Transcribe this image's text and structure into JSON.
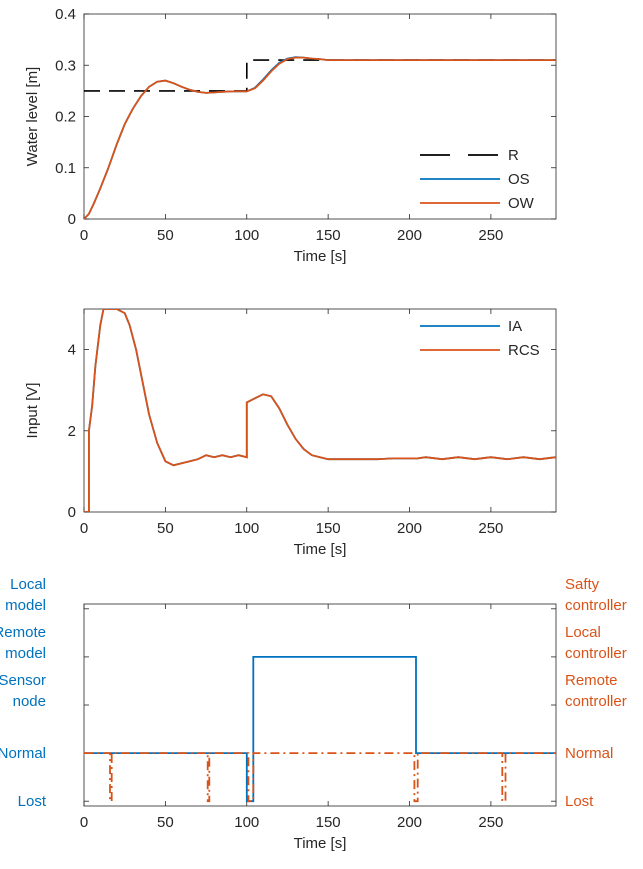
{
  "colors": {
    "blue": "#0072BD",
    "orange": "#D95319",
    "black": "#000000",
    "axis": "#262626"
  },
  "chart_data": [
    {
      "type": "line",
      "xlabel": "Time [s]",
      "ylabel": "Water level [m]",
      "xlim": [
        0,
        290
      ],
      "ylim": [
        0,
        0.4
      ],
      "xticks": [
        0,
        50,
        100,
        150,
        200,
        250
      ],
      "yticks": [
        0,
        0.1,
        0.2,
        0.3,
        0.4
      ],
      "ytick_labels": [
        "0",
        "0.1",
        "0.2",
        "0.3",
        "0.4"
      ],
      "legend_position": "bottom-right",
      "series": [
        {
          "name": "R",
          "style": "dashed",
          "color": "#000000",
          "x": [
            0,
            100,
            100,
            290
          ],
          "y": [
            0.25,
            0.25,
            0.31,
            0.31
          ]
        },
        {
          "name": "OS",
          "style": "solid",
          "color": "#0072BD",
          "x": [
            0,
            3,
            6,
            10,
            15,
            20,
            25,
            30,
            35,
            40,
            45,
            50,
            55,
            60,
            65,
            70,
            75,
            80,
            85,
            90,
            95,
            100,
            105,
            110,
            115,
            120,
            125,
            130,
            135,
            140,
            145,
            150,
            160,
            170,
            180,
            190,
            200,
            210,
            220,
            230,
            240,
            250,
            260,
            270,
            280,
            290
          ],
          "y": [
            0,
            0.01,
            0.03,
            0.06,
            0.1,
            0.145,
            0.185,
            0.215,
            0.24,
            0.258,
            0.268,
            0.27,
            0.265,
            0.258,
            0.252,
            0.248,
            0.246,
            0.247,
            0.248,
            0.249,
            0.249,
            0.249,
            0.256,
            0.272,
            0.29,
            0.305,
            0.313,
            0.316,
            0.315,
            0.313,
            0.312,
            0.31,
            0.31,
            0.31,
            0.31,
            0.31,
            0.31,
            0.31,
            0.31,
            0.31,
            0.31,
            0.31,
            0.31,
            0.31,
            0.31,
            0.31
          ]
        },
        {
          "name": "OW",
          "style": "solid",
          "color": "#D95319",
          "x": [
            0,
            3,
            6,
            10,
            15,
            20,
            25,
            30,
            35,
            40,
            45,
            50,
            55,
            60,
            65,
            70,
            75,
            80,
            85,
            90,
            95,
            100,
            105,
            110,
            115,
            120,
            125,
            130,
            135,
            140,
            145,
            150,
            160,
            170,
            180,
            190,
            200,
            210,
            220,
            230,
            240,
            250,
            260,
            270,
            280,
            290
          ],
          "y": [
            0,
            0.01,
            0.03,
            0.06,
            0.1,
            0.145,
            0.185,
            0.215,
            0.24,
            0.258,
            0.268,
            0.27,
            0.265,
            0.258,
            0.252,
            0.248,
            0.246,
            0.247,
            0.248,
            0.249,
            0.249,
            0.249,
            0.255,
            0.27,
            0.288,
            0.303,
            0.312,
            0.315,
            0.315,
            0.313,
            0.312,
            0.31,
            0.31,
            0.31,
            0.31,
            0.31,
            0.31,
            0.31,
            0.31,
            0.31,
            0.31,
            0.31,
            0.31,
            0.31,
            0.31,
            0.31
          ]
        }
      ]
    },
    {
      "type": "line",
      "xlabel": "Time [s]",
      "ylabel": "Input [V]",
      "xlim": [
        0,
        290
      ],
      "ylim": [
        0,
        5
      ],
      "xticks": [
        0,
        50,
        100,
        150,
        200,
        250
      ],
      "yticks": [
        0,
        2,
        4
      ],
      "legend_position": "top-right",
      "series": [
        {
          "name": "IA",
          "style": "solid",
          "color": "#0072BD",
          "x": [
            0,
            3,
            3,
            5,
            7,
            10,
            12,
            15,
            20,
            25,
            28,
            32,
            36,
            40,
            45,
            50,
            55,
            60,
            65,
            70,
            75,
            80,
            85,
            90,
            95,
            100,
            100,
            105,
            110,
            115,
            120,
            125,
            130,
            135,
            140,
            145,
            150,
            160,
            170,
            180,
            190,
            200,
            205,
            210,
            220,
            230,
            240,
            250,
            260,
            270,
            280,
            290
          ],
          "y": [
            0,
            0,
            2.0,
            2.6,
            3.6,
            4.6,
            5.0,
            5.0,
            5.0,
            4.9,
            4.6,
            4.0,
            3.2,
            2.4,
            1.7,
            1.25,
            1.15,
            1.2,
            1.25,
            1.3,
            1.4,
            1.35,
            1.4,
            1.35,
            1.4,
            1.35,
            2.7,
            2.8,
            2.9,
            2.85,
            2.55,
            2.15,
            1.8,
            1.55,
            1.4,
            1.35,
            1.3,
            1.3,
            1.3,
            1.3,
            1.32,
            1.32,
            1.32,
            1.35,
            1.3,
            1.35,
            1.3,
            1.35,
            1.3,
            1.35,
            1.3,
            1.35
          ]
        },
        {
          "name": "RCS",
          "style": "solid",
          "color": "#D95319",
          "x": [
            0,
            3,
            3,
            5,
            7,
            10,
            12,
            15,
            20,
            25,
            28,
            32,
            36,
            40,
            45,
            50,
            55,
            60,
            65,
            70,
            75,
            80,
            85,
            90,
            95,
            100,
            100,
            105,
            110,
            115,
            120,
            125,
            130,
            135,
            140,
            145,
            150,
            160,
            170,
            180,
            190,
            200,
            205,
            210,
            220,
            230,
            240,
            250,
            260,
            270,
            280,
            290
          ],
          "y": [
            0,
            0,
            2.0,
            2.6,
            3.6,
            4.6,
            5.0,
            5.0,
            5.0,
            4.9,
            4.6,
            4.0,
            3.2,
            2.4,
            1.7,
            1.25,
            1.15,
            1.2,
            1.25,
            1.3,
            1.4,
            1.35,
            1.4,
            1.35,
            1.4,
            1.35,
            2.7,
            2.8,
            2.9,
            2.85,
            2.55,
            2.15,
            1.8,
            1.55,
            1.4,
            1.35,
            1.3,
            1.3,
            1.3,
            1.3,
            1.32,
            1.32,
            1.32,
            1.35,
            1.3,
            1.35,
            1.3,
            1.35,
            1.3,
            1.35,
            1.3,
            1.35
          ]
        }
      ]
    },
    {
      "type": "line",
      "xlabel": "Time [s]",
      "xlim": [
        0,
        290
      ],
      "xticks": [
        0,
        50,
        100,
        150,
        200,
        250
      ],
      "y_levels": [
        0,
        1,
        2,
        3,
        4
      ],
      "left_tick_labels": [
        [
          "Lost"
        ],
        [
          "Normal"
        ],
        [
          "Sensor",
          "node"
        ],
        [
          "Remote",
          "model"
        ],
        [
          "Local",
          "model"
        ]
      ],
      "right_tick_labels": [
        [
          "Lost"
        ],
        [
          "Normal"
        ],
        [
          "Remote",
          "controller"
        ],
        [
          "Local",
          "controller"
        ],
        [
          "Safty",
          "controller"
        ]
      ],
      "series": [
        {
          "style": "solid",
          "color": "#0072BD",
          "x": [
            0,
            100,
            100,
            104,
            104,
            204,
            204,
            290
          ],
          "y": [
            1,
            1,
            0,
            0,
            3,
            3,
            1,
            1
          ]
        },
        {
          "style": "dashdot",
          "color": "#D95319",
          "x": [
            0,
            16,
            16,
            17,
            17,
            76,
            76,
            77,
            77,
            101,
            101,
            104,
            104,
            203,
            203,
            205,
            205,
            257,
            257,
            259,
            259,
            290
          ],
          "y": [
            1,
            1,
            0,
            0,
            1,
            1,
            0,
            0,
            1,
            1,
            0,
            0,
            1,
            1,
            0,
            0,
            1,
            1,
            0,
            0,
            1,
            1
          ]
        }
      ]
    }
  ]
}
